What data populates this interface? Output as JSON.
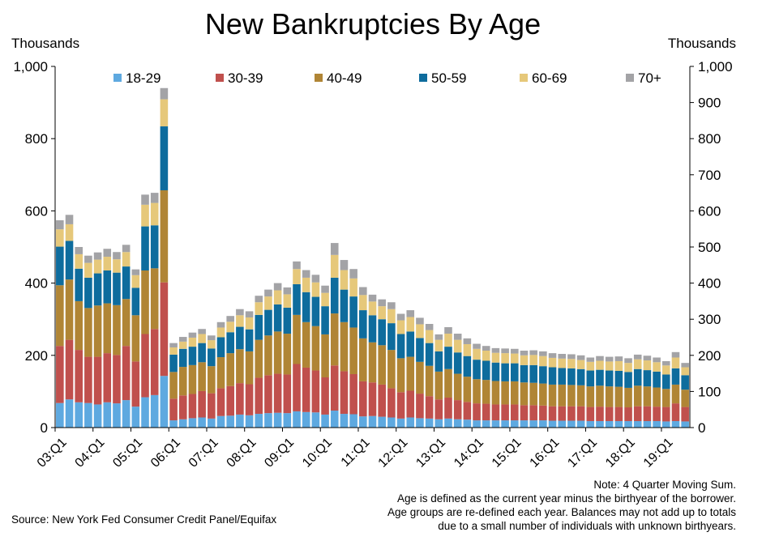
{
  "chart_data": {
    "type": "bar",
    "stacked": true,
    "title": "New Bankruptcies By Age",
    "ylabel_left": "Thousands",
    "ylabel_right": "Thousands",
    "ylim": [
      0,
      1000
    ],
    "left_ticks": [
      "0",
      "200",
      "400",
      "600",
      "800",
      "1,000"
    ],
    "right_ticks": [
      "0",
      "100",
      "200",
      "300",
      "400",
      "500",
      "600",
      "700",
      "800",
      "900",
      "1,000"
    ],
    "x_ticks": [
      "03:Q1",
      "04:Q1",
      "05:Q1",
      "06:Q1",
      "07:Q1",
      "08:Q1",
      "09:Q1",
      "10:Q1",
      "11:Q1",
      "12:Q1",
      "13:Q1",
      "14:Q1",
      "15:Q1",
      "16:Q1",
      "17:Q1",
      "18:Q1",
      "19:Q1"
    ],
    "grid": false,
    "legend": "top",
    "categories": [
      "03:Q1",
      "03:Q2",
      "03:Q3",
      "03:Q4",
      "04:Q1",
      "04:Q2",
      "04:Q3",
      "04:Q4",
      "05:Q1",
      "05:Q2",
      "05:Q3",
      "05:Q4",
      "06:Q1",
      "06:Q2",
      "06:Q3",
      "06:Q4",
      "07:Q1",
      "07:Q2",
      "07:Q3",
      "07:Q4",
      "08:Q1",
      "08:Q2",
      "08:Q3",
      "08:Q4",
      "09:Q1",
      "09:Q2",
      "09:Q3",
      "09:Q4",
      "10:Q1",
      "10:Q2",
      "10:Q3",
      "10:Q4",
      "11:Q1",
      "11:Q2",
      "11:Q3",
      "11:Q4",
      "12:Q1",
      "12:Q2",
      "12:Q3",
      "12:Q4",
      "13:Q1",
      "13:Q2",
      "13:Q3",
      "13:Q4",
      "14:Q1",
      "14:Q2",
      "14:Q3",
      "14:Q4",
      "15:Q1",
      "15:Q2",
      "15:Q3",
      "15:Q4",
      "16:Q1",
      "16:Q2",
      "16:Q3",
      "16:Q4",
      "17:Q1",
      "17:Q2",
      "17:Q3",
      "17:Q4",
      "18:Q1",
      "18:Q2",
      "18:Q3",
      "18:Q4",
      "19:Q1",
      "19:Q2",
      "19:Q3"
    ],
    "series": [
      {
        "name": "18-29",
        "color": "#5ea9e0",
        "values": [
          68,
          78,
          70,
          68,
          64,
          70,
          67,
          76,
          58,
          84,
          90,
          143,
          20,
          23,
          26,
          28,
          25,
          32,
          33,
          36,
          34,
          38,
          40,
          41,
          40,
          45,
          43,
          42,
          36,
          47,
          38,
          37,
          31,
          32,
          30,
          28,
          25,
          28,
          26,
          25,
          23,
          25,
          23,
          22,
          20,
          20,
          20,
          20,
          20,
          20,
          20,
          20,
          19,
          19,
          19,
          19,
          18,
          18,
          18,
          18,
          18,
          18,
          18,
          18,
          17,
          18,
          17
        ]
      },
      {
        "name": "30-39",
        "color": "#c0504d",
        "values": [
          158,
          165,
          145,
          128,
          132,
          136,
          134,
          150,
          125,
          175,
          183,
          259,
          60,
          66,
          67,
          73,
          70,
          77,
          82,
          87,
          86,
          100,
          105,
          108,
          107,
          131,
          123,
          116,
          103,
          125,
          118,
          111,
          97,
          93,
          89,
          81,
          73,
          74,
          68,
          62,
          55,
          58,
          53,
          49,
          47,
          46,
          44,
          44,
          44,
          42,
          42,
          41,
          40,
          40,
          40,
          40,
          39,
          40,
          39,
          39,
          38,
          41,
          41,
          40,
          40,
          49,
          40
        ]
      },
      {
        "name": "40-49",
        "color": "#b08535",
        "values": [
          168,
          167,
          135,
          135,
          142,
          138,
          138,
          130,
          128,
          176,
          168,
          255,
          74,
          79,
          80,
          80,
          75,
          86,
          91,
          94,
          91,
          105,
          110,
          117,
          113,
          136,
          126,
          123,
          119,
          144,
          136,
          129,
          119,
          111,
          109,
          106,
          94,
          94,
          88,
          84,
          77,
          79,
          73,
          70,
          67,
          66,
          65,
          64,
          64,
          63,
          62,
          61,
          60,
          60,
          59,
          58,
          57,
          58,
          57,
          56,
          54,
          57,
          55,
          53,
          50,
          52,
          48
        ]
      },
      {
        "name": "50-59",
        "color": "#0e6c9d",
        "values": [
          107,
          107,
          90,
          84,
          89,
          91,
          90,
          90,
          76,
          122,
          119,
          177,
          48,
          50,
          51,
          53,
          49,
          55,
          58,
          62,
          61,
          69,
          71,
          75,
          72,
          85,
          83,
          81,
          78,
          99,
          90,
          86,
          78,
          75,
          72,
          74,
          67,
          70,
          66,
          63,
          56,
          62,
          59,
          57,
          54,
          53,
          51,
          50,
          50,
          48,
          49,
          48,
          48,
          46,
          46,
          45,
          44,
          44,
          44,
          44,
          44,
          46,
          45,
          44,
          40,
          45,
          40
        ]
      },
      {
        "name": "60-69",
        "color": "#e6c87a",
        "values": [
          48,
          46,
          40,
          41,
          38,
          38,
          37,
          40,
          35,
          60,
          62,
          75,
          20,
          20,
          25,
          25,
          23,
          27,
          29,
          32,
          33,
          35,
          37,
          39,
          37,
          42,
          40,
          40,
          37,
          63,
          54,
          50,
          42,
          38,
          36,
          39,
          38,
          40,
          38,
          36,
          32,
          36,
          35,
          33,
          30,
          28,
          27,
          28,
          27,
          27,
          28,
          28,
          26,
          26,
          26,
          25,
          24,
          25,
          25,
          27,
          25,
          27,
          27,
          26,
          25,
          30,
          22
        ]
      },
      {
        "name": "70+",
        "color": "#a3a3a6",
        "values": [
          25,
          26,
          20,
          20,
          20,
          22,
          20,
          20,
          16,
          28,
          28,
          31,
          12,
          13,
          14,
          14,
          13,
          15,
          16,
          17,
          17,
          18,
          19,
          20,
          19,
          21,
          21,
          21,
          20,
          33,
          28,
          26,
          22,
          19,
          19,
          19,
          18,
          19,
          18,
          17,
          15,
          18,
          17,
          16,
          14,
          13,
          13,
          13,
          13,
          13,
          13,
          13,
          13,
          13,
          13,
          13,
          12,
          13,
          13,
          13,
          13,
          13,
          13,
          13,
          12,
          15,
          12
        ]
      }
    ]
  },
  "notes": [
    "Note: 4 Quarter Moving Sum.",
    "Age is defined as the current year minus the birthyear of the borrower.",
    "Age groups are re-defined each year. Balances may not add up to totals",
    "due to a small number of individuals with unknown birthyears."
  ],
  "source": "Source: New York Fed Consumer Credit Panel/Equifax"
}
